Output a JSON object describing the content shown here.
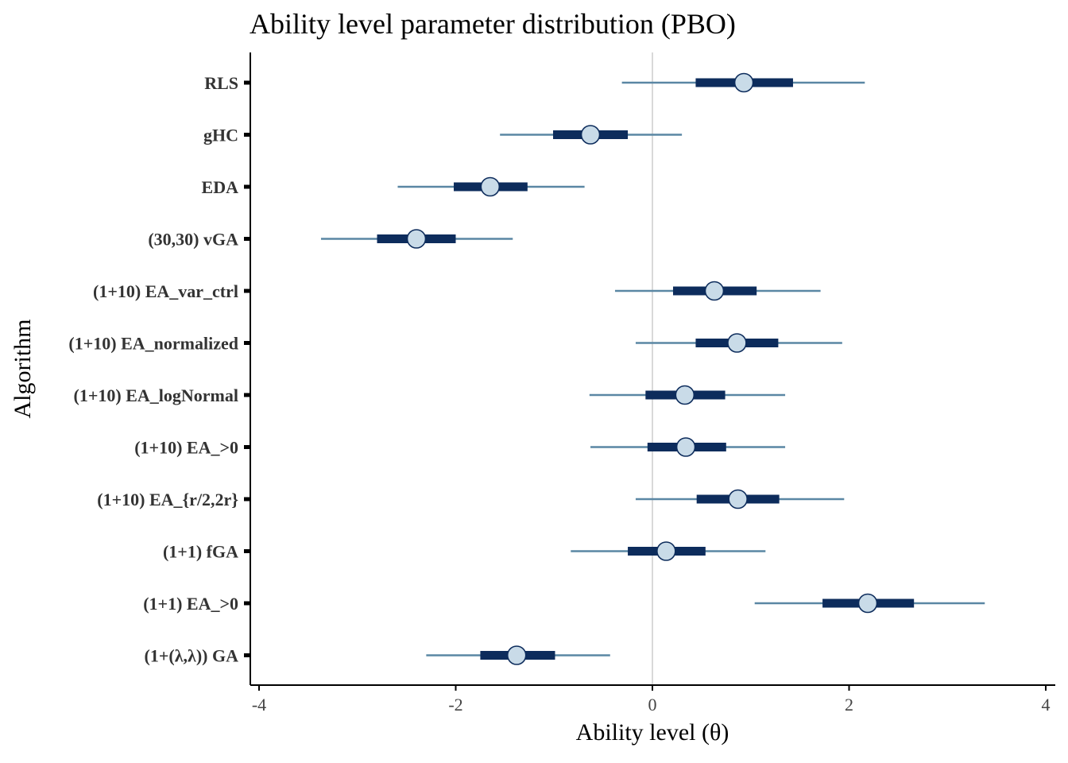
{
  "chart_data": {
    "type": "interval",
    "title": "Ability level parameter distribution (PBO)",
    "xlabel": "Ability level (θ)",
    "ylabel": "Algorithm",
    "xlim": [
      -4,
      4
    ],
    "xticks": [
      -4,
      -2,
      0,
      2,
      4
    ],
    "xtick_labels": [
      "-4",
      "-2",
      "0",
      "2",
      "4"
    ],
    "reference_line": 0,
    "grid": false,
    "categories": [
      "RLS",
      "gHC",
      "EDA",
      "(30,30) vGA",
      "(1+10) EA_var_ctrl",
      "(1+10) EA_normalized",
      "(1+10) EA_logNormal",
      "(1+10) EA_>0",
      "(1+10) EA_{r/2,2r}",
      "(1+1) fGA",
      "(1+1) EA_>0",
      "(1+(λ,λ)) GA"
    ],
    "series": [
      {
        "median": [
          0.93,
          -0.63,
          -1.65,
          -2.4,
          0.63,
          0.86,
          0.33,
          0.34,
          0.87,
          0.14,
          2.19,
          -1.38
        ],
        "inner": [
          [
            0.44,
            1.43
          ],
          [
            -1.01,
            -0.25
          ],
          [
            -2.02,
            -1.27
          ],
          [
            -2.8,
            -2.0
          ],
          [
            0.21,
            1.06
          ],
          [
            0.44,
            1.28
          ],
          [
            -0.07,
            0.74
          ],
          [
            -0.05,
            0.75
          ],
          [
            0.45,
            1.29
          ],
          [
            -0.25,
            0.54
          ],
          [
            1.73,
            2.66
          ],
          [
            -1.75,
            -0.99
          ]
        ],
        "outer": [
          [
            -0.31,
            2.16
          ],
          [
            -1.55,
            0.3
          ],
          [
            -2.59,
            -0.69
          ],
          [
            -3.37,
            -1.42
          ],
          [
            -0.38,
            1.71
          ],
          [
            -0.17,
            1.93
          ],
          [
            -0.64,
            1.35
          ],
          [
            -0.63,
            1.35
          ],
          [
            -0.17,
            1.95
          ],
          [
            -0.83,
            1.15
          ],
          [
            1.04,
            3.38
          ],
          [
            -2.3,
            -0.43
          ]
        ]
      }
    ],
    "colors": {
      "outer": "#5a87a4",
      "inner": "#0d2c5c",
      "point_fill": "#c9dbe8",
      "point_stroke": "#0d2c5c",
      "zero_line": "#d9d9d9",
      "axis": "#000000",
      "tick_label": "#444444",
      "category_label": "#333333"
    }
  }
}
